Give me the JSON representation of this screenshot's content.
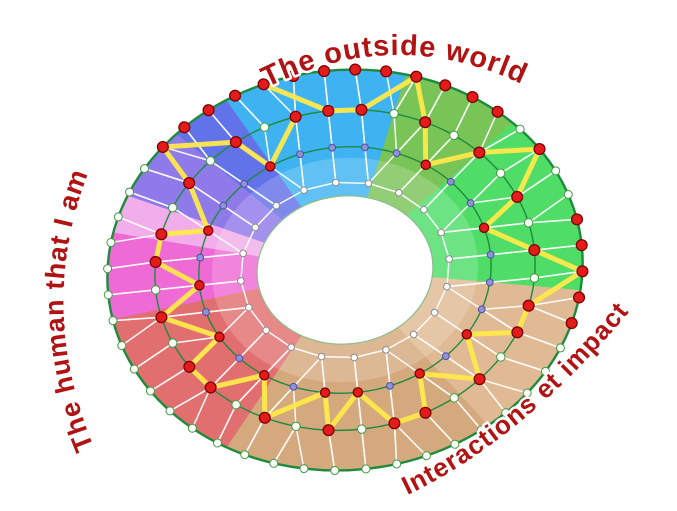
{
  "labels": {
    "top": {
      "text": "The outside world",
      "color": "#b11212"
    },
    "left": {
      "text": "The human that I am",
      "color": "#b11212"
    },
    "bottom_right": {
      "text": "Interactions et impact",
      "color": "#b11212"
    }
  },
  "diagram": {
    "background": "#ffffff",
    "ring_outline_color": "#1d8a3c",
    "hole_edge_color": "#8abf8a",
    "mesh_color": "#ffffff",
    "yellow_path_color": "#ffe94a",
    "node_colors": {
      "outer_white": "#ffffff",
      "outer_stroke": "#3f9d3f",
      "mid_purple": "#9191d8",
      "mid_purple_stroke": "#4d4da8",
      "inner_white": "#ffffff",
      "inner_stroke": "#8a8a8a",
      "highlight_red": "#e31b1b",
      "highlight_stroke": "#7d0000"
    },
    "hole_radius": 0.37,
    "sectors": [
      {
        "name": "cyan",
        "color": "#3fb3f2",
        "start": -25,
        "end": 20
      },
      {
        "name": "green-dark",
        "color": "#79c457",
        "start": 20,
        "end": 50
      },
      {
        "name": "green-bright",
        "color": "#4fdd68",
        "start": 50,
        "end": 103
      },
      {
        "name": "tan-light",
        "color": "#e0ba94",
        "start": 103,
        "end": 148
      },
      {
        "name": "tan-dark",
        "color": "#d5a97e",
        "start": 148,
        "end": 215
      },
      {
        "name": "salmon",
        "color": "#e26f6f",
        "start": 215,
        "end": 263
      },
      {
        "name": "magenta",
        "color": "#ee6ad4",
        "start": 263,
        "end": 288
      },
      {
        "name": "pink-light",
        "color": "#f2aeea",
        "start": 288,
        "end": 299
      },
      {
        "name": "purple",
        "color": "#8f7ae9",
        "start": 299,
        "end": 320
      },
      {
        "name": "blue-violet",
        "color": "#6272e8",
        "start": 320,
        "end": 335
      }
    ],
    "rings": [
      {
        "nodes": 48,
        "radius": 1.0
      },
      {
        "nodes": 36,
        "radius": 0.8
      },
      {
        "nodes": 28,
        "radius": 0.615
      },
      {
        "nodes": 20,
        "radius": 0.44
      }
    ],
    "yellow_path": [
      [
        0,
        46
      ],
      [
        1,
        0
      ],
      [
        1,
        1
      ],
      [
        0,
        3
      ],
      [
        1,
        3
      ],
      [
        2,
        3
      ],
      [
        1,
        5
      ],
      [
        0,
        8
      ],
      [
        1,
        7
      ],
      [
        2,
        6
      ],
      [
        1,
        9
      ],
      [
        0,
        13
      ],
      [
        1,
        11
      ],
      [
        1,
        12
      ],
      [
        2,
        10
      ],
      [
        1,
        14
      ],
      [
        2,
        12
      ],
      [
        1,
        16
      ],
      [
        1,
        17
      ],
      [
        2,
        14
      ],
      [
        1,
        19
      ],
      [
        2,
        15
      ],
      [
        1,
        21
      ],
      [
        2,
        17
      ],
      [
        1,
        23
      ],
      [
        1,
        24
      ],
      [
        2,
        19
      ],
      [
        1,
        26
      ],
      [
        2,
        21
      ],
      [
        1,
        28
      ],
      [
        1,
        29
      ],
      [
        2,
        23
      ],
      [
        1,
        31
      ],
      [
        0,
        42
      ],
      [
        1,
        33
      ],
      [
        2,
        26
      ],
      [
        1,
        35
      ]
    ],
    "extra_red_outer": [
      43,
      44,
      45,
      47,
      0,
      1,
      2,
      4,
      5,
      6,
      11,
      12,
      13,
      14,
      15
    ]
  }
}
